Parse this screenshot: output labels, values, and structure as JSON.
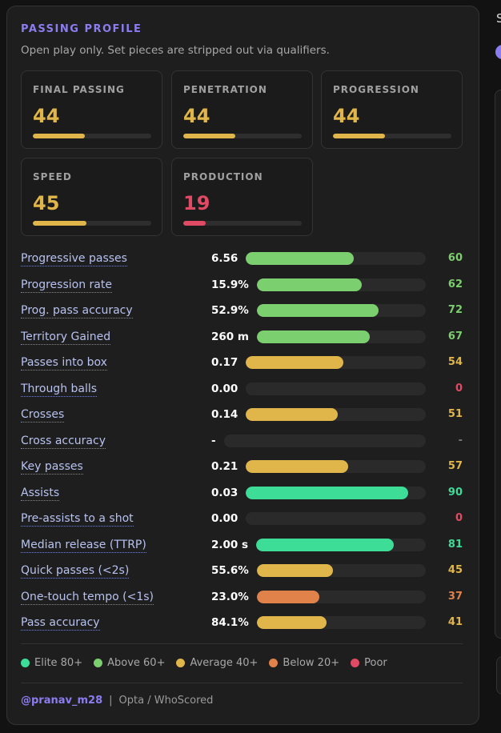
{
  "header": {
    "title": "PASSING PROFILE",
    "subtitle": "Open play only. Set pieces are stripped out via qualifiers."
  },
  "colors": {
    "elite": "#3ddc97",
    "above": "#7ccf6e",
    "average": "#e0b64a",
    "below": "#e0824a",
    "poor": "#e04a64"
  },
  "cards": [
    {
      "label": "FINAL PASSING",
      "value": "44",
      "fill": 0.44,
      "tier": "average"
    },
    {
      "label": "PENETRATION",
      "value": "44",
      "fill": 0.44,
      "tier": "average"
    },
    {
      "label": "PROGRESSION",
      "value": "44",
      "fill": 0.44,
      "tier": "average"
    },
    {
      "label": "SPEED",
      "value": "45",
      "fill": 0.45,
      "tier": "average"
    },
    {
      "label": "PRODUCTION",
      "value": "19",
      "fill": 0.19,
      "tier": "poor"
    }
  ],
  "metrics": [
    {
      "label": "Progressive passes",
      "value": "6.56",
      "pct": "60",
      "fill": 0.6,
      "tier": "above"
    },
    {
      "label": "Progression rate",
      "value": "15.9%",
      "pct": "62",
      "fill": 0.62,
      "tier": "above"
    },
    {
      "label": "Prog. pass accuracy",
      "value": "52.9%",
      "pct": "72",
      "fill": 0.72,
      "tier": "above"
    },
    {
      "label": "Territory Gained",
      "value": "260 m",
      "pct": "67",
      "fill": 0.67,
      "tier": "above"
    },
    {
      "label": "Passes into box",
      "value": "0.17",
      "pct": "54",
      "fill": 0.54,
      "tier": "average"
    },
    {
      "label": "Through balls",
      "value": "0.00",
      "pct": "0",
      "fill": 0,
      "tier": "poor"
    },
    {
      "label": "Crosses",
      "value": "0.14",
      "pct": "51",
      "fill": 0.51,
      "tier": "average"
    },
    {
      "label": "Cross accuracy",
      "value": "-",
      "pct": "-",
      "fill": 0,
      "tier": "none"
    },
    {
      "label": "Key passes",
      "value": "0.21",
      "pct": "57",
      "fill": 0.57,
      "tier": "average"
    },
    {
      "label": "Assists",
      "value": "0.03",
      "pct": "90",
      "fill": 0.9,
      "tier": "elite"
    },
    {
      "label": "Pre-assists to a shot",
      "value": "0.00",
      "pct": "0",
      "fill": 0,
      "tier": "poor"
    },
    {
      "label": "Median release (TTRP)",
      "value": "2.00 s",
      "pct": "81",
      "fill": 0.81,
      "tier": "elite"
    },
    {
      "label": "Quick passes (<2s)",
      "value": "55.6%",
      "pct": "45",
      "fill": 0.45,
      "tier": "average"
    },
    {
      "label": "One-touch tempo (<1s)",
      "value": "23.0%",
      "pct": "37",
      "fill": 0.37,
      "tier": "below"
    },
    {
      "label": "Pass accuracy",
      "value": "84.1%",
      "pct": "41",
      "fill": 0.41,
      "tier": "average"
    }
  ],
  "legend": [
    {
      "label": "Elite 80+",
      "tier": "elite"
    },
    {
      "label": "Above 60+",
      "tier": "above"
    },
    {
      "label": "Average 40+",
      "tier": "average"
    },
    {
      "label": "Below 20+",
      "tier": "below"
    },
    {
      "label": "Poor",
      "tier": "poor"
    }
  ],
  "footer": {
    "handle": "@pranav_m28",
    "separator": "|",
    "source": "Opta / WhoScored"
  },
  "side": {
    "letter": "S"
  }
}
